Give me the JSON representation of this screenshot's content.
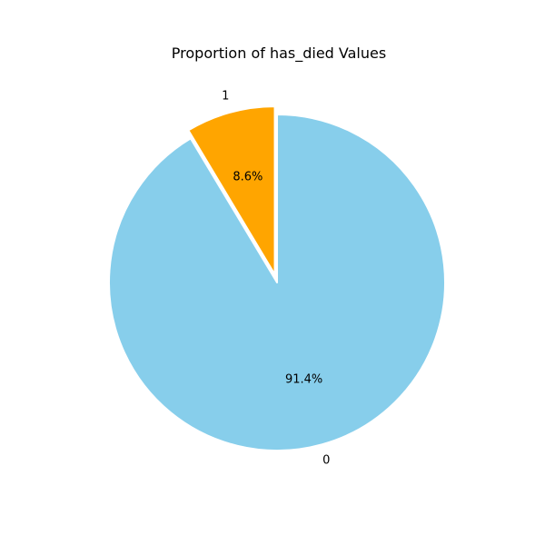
{
  "chart_data": {
    "type": "pie",
    "title": "Proportion of has_died Values",
    "slices": [
      {
        "label": "0",
        "value": 91.4,
        "pct_label": "91.4%",
        "color": "#87CEEB",
        "explode": 0
      },
      {
        "label": "1",
        "value": 8.6,
        "pct_label": "8.6%",
        "color": "#FFA500",
        "explode": 0.05
      }
    ],
    "start_angle_deg": 90,
    "direction": "clockwise",
    "edge_color": "#ffffff"
  }
}
